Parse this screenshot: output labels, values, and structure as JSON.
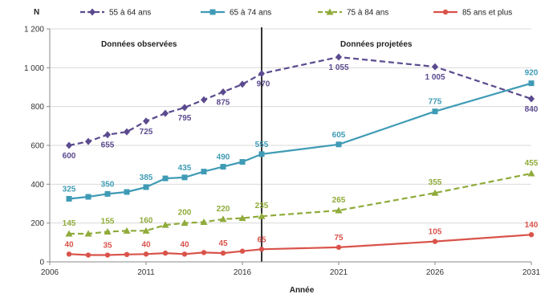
{
  "chart_data": {
    "type": "line",
    "ylabel": "N",
    "xlabel": "Année",
    "ylim": [
      0,
      1200
    ],
    "xlim": [
      2006,
      2031
    ],
    "y_ticks": [
      0,
      200,
      400,
      600,
      800,
      1000,
      1200
    ],
    "y_tick_labels": [
      "0",
      "200",
      "400",
      "600",
      "800",
      "1 000",
      "1 200"
    ],
    "x_ticks": [
      2006,
      2011,
      2016,
      2021,
      2026,
      2031
    ],
    "x_tick_labels": [
      "2006",
      "2011",
      "2016",
      "2021",
      "2026",
      "2031"
    ],
    "divider_year": 2017,
    "section_labels": {
      "observed": "Données observées",
      "projected": "Données projetées"
    },
    "legend": {
      "position": "top"
    },
    "series": [
      {
        "name": "55 à 64 ans",
        "color": "#5b4a8e",
        "line_style": "dashed",
        "marker": "diamond",
        "x": [
          2007,
          2008,
          2009,
          2010,
          2011,
          2012,
          2013,
          2014,
          2015,
          2016,
          2017,
          2021,
          2026,
          2031
        ],
        "values": [
          600,
          620,
          655,
          670,
          725,
          765,
          795,
          835,
          875,
          915,
          970,
          1055,
          1005,
          840
        ],
        "labels": [
          {
            "x": 2007,
            "text": "600"
          },
          {
            "x": 2009,
            "text": "655"
          },
          {
            "x": 2011,
            "text": "725"
          },
          {
            "x": 2013,
            "text": "795"
          },
          {
            "x": 2015,
            "text": "875"
          },
          {
            "x": 2017,
            "text": "970"
          },
          {
            "x": 2021,
            "text": "1 055"
          },
          {
            "x": 2026,
            "text": "1 005"
          },
          {
            "x": 2031,
            "text": "840"
          }
        ]
      },
      {
        "name": "65 à 74 ans",
        "color": "#3f9bb5",
        "line_style": "solid",
        "marker": "square",
        "x": [
          2007,
          2008,
          2009,
          2010,
          2011,
          2012,
          2013,
          2014,
          2015,
          2016,
          2017,
          2021,
          2026,
          2031
        ],
        "values": [
          325,
          335,
          350,
          360,
          385,
          430,
          435,
          465,
          490,
          515,
          555,
          605,
          775,
          920
        ],
        "labels": [
          {
            "x": 2007,
            "text": "325"
          },
          {
            "x": 2009,
            "text": "350"
          },
          {
            "x": 2011,
            "text": "385"
          },
          {
            "x": 2013,
            "text": "435"
          },
          {
            "x": 2015,
            "text": "490"
          },
          {
            "x": 2017,
            "text": "555"
          },
          {
            "x": 2021,
            "text": "605"
          },
          {
            "x": 2026,
            "text": "775"
          },
          {
            "x": 2031,
            "text": "920"
          }
        ]
      },
      {
        "name": "75 à 84 ans",
        "color": "#8fab3a",
        "line_style": "dashed",
        "marker": "triangle",
        "x": [
          2007,
          2008,
          2009,
          2010,
          2011,
          2012,
          2013,
          2014,
          2015,
          2016,
          2017,
          2021,
          2026,
          2031
        ],
        "values": [
          145,
          145,
          155,
          160,
          160,
          190,
          200,
          205,
          220,
          225,
          235,
          265,
          355,
          455
        ],
        "labels": [
          {
            "x": 2007,
            "text": "145"
          },
          {
            "x": 2009,
            "text": "155"
          },
          {
            "x": 2011,
            "text": "160"
          },
          {
            "x": 2013,
            "text": "200"
          },
          {
            "x": 2015,
            "text": "220"
          },
          {
            "x": 2017,
            "text": "235"
          },
          {
            "x": 2021,
            "text": "265"
          },
          {
            "x": 2026,
            "text": "355"
          },
          {
            "x": 2031,
            "text": "455"
          }
        ]
      },
      {
        "name": "85 ans et plus",
        "color": "#d9534a",
        "line_style": "solid",
        "marker": "circle",
        "x": [
          2007,
          2008,
          2009,
          2010,
          2011,
          2012,
          2013,
          2014,
          2015,
          2016,
          2017,
          2021,
          2026,
          2031
        ],
        "values": [
          40,
          35,
          35,
          38,
          40,
          45,
          40,
          48,
          45,
          55,
          65,
          75,
          105,
          140
        ],
        "labels": [
          {
            "x": 2007,
            "text": "40"
          },
          {
            "x": 2009,
            "text": "35"
          },
          {
            "x": 2011,
            "text": "40"
          },
          {
            "x": 2013,
            "text": "40"
          },
          {
            "x": 2015,
            "text": "45"
          },
          {
            "x": 2017,
            "text": "65"
          },
          {
            "x": 2021,
            "text": "75"
          },
          {
            "x": 2026,
            "text": "105"
          },
          {
            "x": 2031,
            "text": "140"
          }
        ]
      }
    ]
  }
}
